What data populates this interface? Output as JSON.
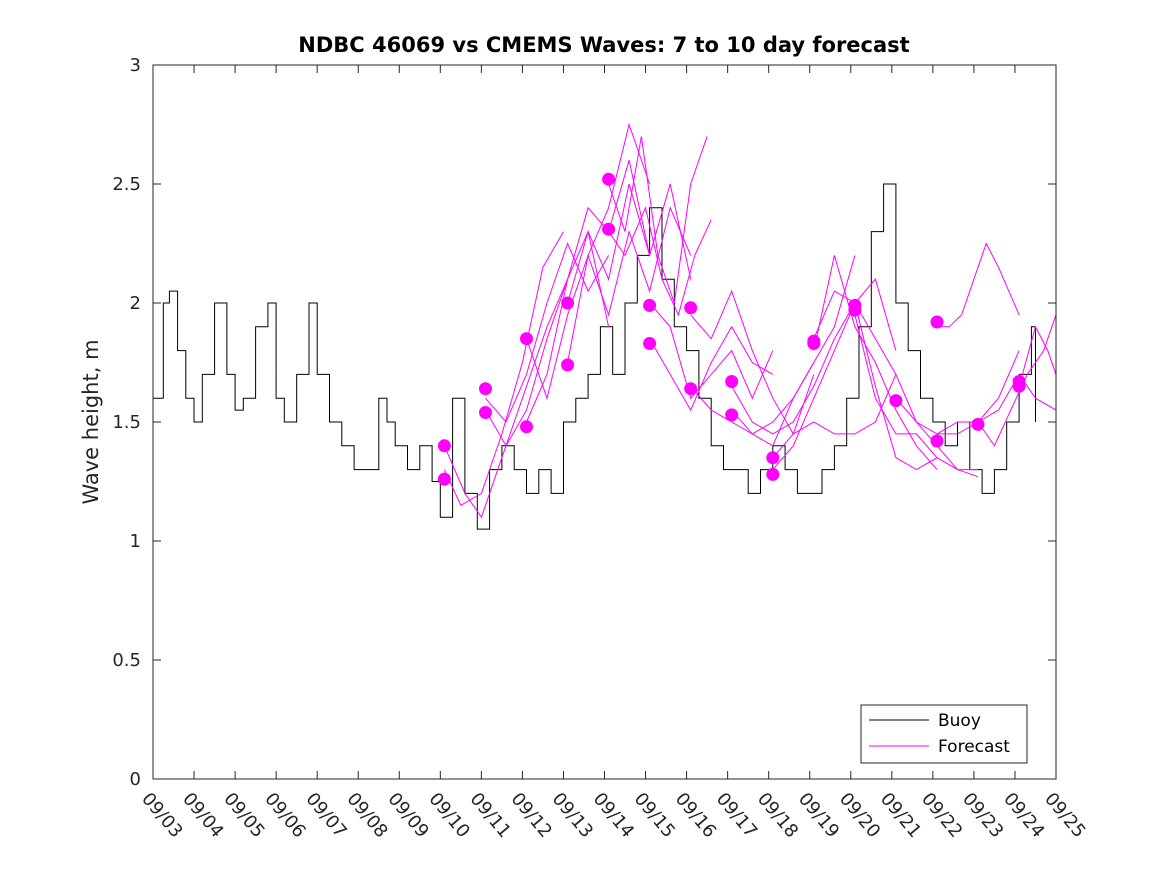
{
  "chart_data": {
    "type": "line",
    "title": "NDBC 46069 vs CMEMS Waves: 7 to 10 day forecast",
    "xlabel": "",
    "ylabel": "Wave height, m",
    "ylim": [
      0,
      3
    ],
    "xlim_days": [
      0,
      22
    ],
    "yticks": [
      "0",
      "0.5",
      "1",
      "1.5",
      "2",
      "2.5",
      "3"
    ],
    "xticks": [
      "09/03",
      "09/04",
      "09/05",
      "09/06",
      "09/07",
      "09/08",
      "09/09",
      "09/10",
      "09/11",
      "09/12",
      "09/13",
      "09/14",
      "09/15",
      "09/16",
      "09/17",
      "09/18",
      "09/19",
      "09/20",
      "09/21",
      "09/22",
      "09/23",
      "09/24",
      "09/25"
    ],
    "legend": {
      "position": "bottom-right",
      "entries": [
        "Buoy",
        "Forecast"
      ]
    },
    "colors": {
      "buoy": "#000000",
      "forecast": "#ff00ff"
    },
    "buoy": {
      "name": "Buoy",
      "x": [
        0,
        0.25,
        0.4,
        0.6,
        0.8,
        1.0,
        1.2,
        1.5,
        1.8,
        2.0,
        2.2,
        2.5,
        2.8,
        3.0,
        3.2,
        3.5,
        3.8,
        4.0,
        4.3,
        4.6,
        4.9,
        5.2,
        5.5,
        5.7,
        5.9,
        6.2,
        6.5,
        6.8,
        7.0,
        7.3,
        7.6,
        7.9,
        8.2,
        8.5,
        8.8,
        9.1,
        9.4,
        9.7,
        10.0,
        10.3,
        10.6,
        10.9,
        11.2,
        11.5,
        11.8,
        12.1,
        12.4,
        12.7,
        13.0,
        13.3,
        13.6,
        13.9,
        14.2,
        14.5,
        14.8,
        15.1,
        15.4,
        15.7,
        16.0,
        16.3,
        16.6,
        16.9,
        17.2,
        17.5,
        17.8,
        18.1,
        18.4,
        18.7,
        19.0,
        19.3,
        19.6,
        19.9,
        20.2,
        20.5,
        20.8,
        21.1,
        21.4,
        21.5
      ],
      "y": [
        1.6,
        2.0,
        2.05,
        1.8,
        1.6,
        1.5,
        1.7,
        2.0,
        1.7,
        1.55,
        1.6,
        1.9,
        2.0,
        1.6,
        1.5,
        1.7,
        2.0,
        1.7,
        1.5,
        1.4,
        1.3,
        1.3,
        1.6,
        1.5,
        1.4,
        1.3,
        1.4,
        1.25,
        1.1,
        1.6,
        1.2,
        1.05,
        1.3,
        1.4,
        1.3,
        1.2,
        1.3,
        1.2,
        1.5,
        1.6,
        1.7,
        1.9,
        1.7,
        2.0,
        2.2,
        2.4,
        2.1,
        1.9,
        1.8,
        1.6,
        1.4,
        1.3,
        1.3,
        1.2,
        1.3,
        1.4,
        1.3,
        1.2,
        1.2,
        1.3,
        1.4,
        1.6,
        1.9,
        2.3,
        2.5,
        2.0,
        1.8,
        1.6,
        1.5,
        1.4,
        1.5,
        1.3,
        1.2,
        1.3,
        1.5,
        1.7,
        1.9,
        1.5
      ]
    },
    "forecast": [
      {
        "name": "Forecast",
        "x": [
          7.1,
          7.5,
          8.0,
          8.5,
          9.0,
          9.5,
          10.0
        ],
        "y": [
          1.3,
          1.15,
          1.2,
          1.45,
          1.75,
          2.15,
          2.3
        ]
      },
      {
        "name": "Forecast",
        "x": [
          7.1,
          7.6,
          8.0,
          8.5,
          9.0,
          9.6,
          10.1
        ],
        "y": [
          1.4,
          1.2,
          1.1,
          1.35,
          1.6,
          1.9,
          2.1
        ]
      },
      {
        "name": "Forecast",
        "x": [
          8.1,
          8.6,
          9.1,
          9.6,
          10.1,
          10.6,
          11.1
        ],
        "y": [
          1.6,
          1.5,
          1.7,
          2.0,
          2.25,
          2.05,
          2.2
        ]
      },
      {
        "name": "Forecast",
        "x": [
          8.1,
          8.6,
          9.1,
          9.6,
          10.1,
          10.6,
          11.1
        ],
        "y": [
          1.55,
          1.4,
          1.55,
          1.85,
          2.1,
          2.3,
          1.9
        ]
      },
      {
        "name": "Forecast",
        "x": [
          9.1,
          9.6,
          10.1,
          10.6,
          11.1,
          11.6,
          12.1
        ],
        "y": [
          1.85,
          1.6,
          1.95,
          2.2,
          2.4,
          2.75,
          2.5
        ]
      },
      {
        "name": "Forecast",
        "x": [
          9.1,
          9.6,
          10.1,
          10.6,
          11.1,
          11.6,
          12.1
        ],
        "y": [
          1.5,
          1.7,
          2.1,
          2.4,
          2.3,
          2.6,
          2.2
        ]
      },
      {
        "name": "Forecast",
        "x": [
          10.1,
          10.6,
          11.1,
          11.6,
          12.1,
          12.6,
          13.1
        ],
        "y": [
          2.0,
          2.3,
          2.1,
          2.5,
          2.2,
          2.5,
          2.1
        ]
      },
      {
        "name": "Forecast",
        "x": [
          10.1,
          10.6,
          11.1,
          11.6,
          12.1,
          12.6,
          13.1
        ],
        "y": [
          1.75,
          2.2,
          1.95,
          2.3,
          2.05,
          2.4,
          2.2
        ]
      },
      {
        "name": "Forecast",
        "x": [
          11.1,
          11.5,
          11.9,
          12.3,
          12.7,
          13.1,
          13.5
        ],
        "y": [
          2.5,
          2.3,
          2.7,
          2.2,
          2.0,
          2.5,
          2.7
        ]
      },
      {
        "name": "Forecast",
        "x": [
          11.1,
          11.5,
          12.0,
          12.4,
          12.8,
          13.2,
          13.6
        ],
        "y": [
          2.3,
          2.2,
          2.4,
          2.1,
          1.95,
          2.2,
          2.35
        ]
      },
      {
        "name": "Forecast",
        "x": [
          12.1,
          12.6,
          13.1,
          13.6,
          14.1,
          14.6,
          15.1
        ],
        "y": [
          2.0,
          1.9,
          1.6,
          1.7,
          1.8,
          1.6,
          1.8
        ]
      },
      {
        "name": "Forecast",
        "x": [
          12.1,
          12.6,
          13.1,
          13.6,
          14.1,
          14.6,
          15.1
        ],
        "y": [
          1.85,
          1.7,
          1.55,
          1.75,
          1.9,
          1.75,
          1.7
        ]
      },
      {
        "name": "Forecast",
        "x": [
          13.1,
          13.6,
          14.1,
          14.6,
          15.1,
          15.6,
          16.1
        ],
        "y": [
          1.95,
          1.85,
          2.05,
          1.8,
          1.6,
          1.45,
          1.7
        ]
      },
      {
        "name": "Forecast",
        "x": [
          13.1,
          13.6,
          14.1,
          14.6,
          15.1,
          15.6,
          16.1
        ],
        "y": [
          1.65,
          1.55,
          1.5,
          1.45,
          1.5,
          1.6,
          1.75
        ]
      },
      {
        "name": "Forecast",
        "x": [
          14.1,
          14.6,
          15.1,
          15.6,
          16.1,
          16.6,
          17.1
        ],
        "y": [
          1.55,
          1.45,
          1.4,
          1.6,
          1.75,
          1.9,
          2.2
        ]
      },
      {
        "name": "Forecast",
        "x": [
          14.1,
          14.6,
          15.1,
          15.6,
          16.1,
          16.6,
          17.1
        ],
        "y": [
          1.65,
          1.5,
          1.45,
          1.5,
          1.65,
          1.85,
          2.0
        ]
      },
      {
        "name": "Forecast",
        "x": [
          15.1,
          15.6,
          16.1,
          16.6,
          17.1,
          17.6,
          18.1
        ],
        "y": [
          1.35,
          1.45,
          1.5,
          1.45,
          1.45,
          1.5,
          1.7
        ]
      },
      {
        "name": "Forecast",
        "x": [
          15.1,
          15.6,
          16.1,
          16.6,
          17.1,
          17.6,
          18.1
        ],
        "y": [
          1.3,
          1.4,
          1.6,
          1.8,
          2.0,
          2.1,
          1.8
        ]
      },
      {
        "name": "Forecast",
        "x": [
          16.1,
          16.6,
          17.1,
          17.6,
          18.1,
          18.6,
          19.1
        ],
        "y": [
          1.85,
          2.05,
          2.0,
          1.65,
          1.35,
          1.3,
          1.35
        ]
      },
      {
        "name": "Forecast",
        "x": [
          16.1,
          16.6,
          17.1,
          17.6,
          18.1,
          18.6,
          19.1
        ],
        "y": [
          1.8,
          2.2,
          1.9,
          1.75,
          1.55,
          1.4,
          1.3
        ]
      },
      {
        "name": "Forecast",
        "x": [
          17.1,
          17.6,
          18.1,
          18.6,
          19.1,
          19.6,
          20.1
        ],
        "y": [
          2.0,
          1.85,
          1.7,
          1.5,
          1.4,
          1.3,
          1.3
        ]
      },
      {
        "name": "Forecast",
        "x": [
          17.1,
          17.6,
          18.1,
          18.6,
          19.1,
          19.6,
          20.1
        ],
        "y": [
          1.95,
          1.6,
          1.45,
          1.45,
          1.35,
          1.3,
          1.27
        ]
      },
      {
        "name": "Forecast",
        "x": [
          18.1,
          18.6,
          19.1,
          19.6,
          20.1,
          20.6,
          21.1
        ],
        "y": [
          1.6,
          1.5,
          1.45,
          1.5,
          1.5,
          1.6,
          1.8
        ]
      },
      {
        "name": "Forecast",
        "x": [
          19.1,
          19.4,
          19.7,
          20.0,
          20.3,
          20.6,
          21.1
        ],
        "y": [
          1.9,
          1.9,
          1.95,
          2.1,
          2.25,
          2.15,
          1.95
        ]
      },
      {
        "name": "Forecast",
        "x": [
          19.1,
          19.6,
          20.1,
          20.6,
          21.1,
          21.5,
          22.0
        ],
        "y": [
          1.45,
          1.45,
          1.5,
          1.55,
          1.7,
          1.6,
          1.55
        ]
      },
      {
        "name": "Forecast",
        "x": [
          20.1,
          20.5,
          20.9,
          21.3,
          21.7,
          22.0
        ],
        "y": [
          1.5,
          1.4,
          1.55,
          1.7,
          1.8,
          1.95
        ]
      },
      {
        "name": "Forecast",
        "x": [
          21.1,
          21.5,
          21.8,
          22.0
        ],
        "y": [
          1.65,
          1.9,
          1.8,
          1.7
        ]
      }
    ],
    "forecast_points": {
      "x": [
        7.1,
        7.1,
        8.1,
        8.1,
        9.1,
        9.1,
        10.1,
        10.1,
        11.1,
        11.1,
        12.1,
        12.1,
        13.1,
        13.1,
        14.1,
        14.1,
        15.1,
        15.1,
        16.1,
        16.1,
        17.1,
        17.1,
        18.1,
        19.1,
        19.1,
        20.1,
        21.1,
        21.1
      ],
      "y": [
        1.4,
        1.26,
        1.64,
        1.54,
        1.85,
        1.48,
        2.0,
        1.74,
        2.52,
        2.31,
        1.99,
        1.83,
        1.98,
        1.64,
        1.67,
        1.53,
        1.35,
        1.28,
        1.84,
        1.83,
        1.99,
        1.97,
        1.59,
        1.92,
        1.42,
        1.49,
        1.67,
        1.65
      ]
    }
  }
}
